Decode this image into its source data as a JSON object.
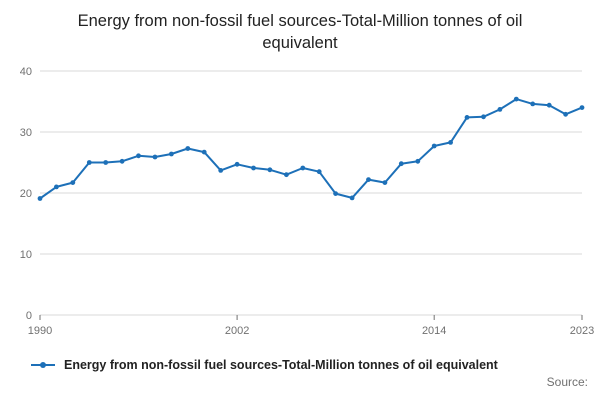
{
  "title": "Energy from non-fossil fuel sources-Total-Million tonnes of oil equivalent",
  "legend": {
    "label": "Energy from non-fossil fuel sources-Total-Million tonnes of oil equivalent"
  },
  "source": "Source:",
  "colors": {
    "line": "#1d70b8",
    "grid": "#d9d9d9",
    "axis_text": "#707070",
    "title_text": "#222222"
  },
  "chart_data": {
    "type": "line",
    "title": "Energy from non-fossil fuel sources-Total-Million tonnes of oil equivalent",
    "xlabel": "",
    "ylabel": "",
    "x": [
      1990,
      1991,
      1992,
      1993,
      1994,
      1995,
      1996,
      1997,
      1998,
      1999,
      2000,
      2001,
      2002,
      2003,
      2004,
      2005,
      2006,
      2007,
      2008,
      2009,
      2010,
      2011,
      2012,
      2013,
      2014,
      2015,
      2016,
      2017,
      2018,
      2019,
      2020,
      2021,
      2022,
      2023
    ],
    "series": [
      {
        "name": "Energy from non-fossil fuel sources-Total-Million tonnes of oil equivalent",
        "values": [
          19.1,
          21.0,
          21.7,
          25.0,
          25.0,
          25.2,
          26.1,
          25.9,
          26.4,
          27.3,
          26.7,
          23.7,
          24.7,
          24.1,
          23.8,
          23.0,
          24.1,
          23.5,
          19.9,
          19.2,
          22.2,
          21.7,
          24.8,
          25.2,
          27.7,
          28.3,
          32.4,
          32.5,
          33.7,
          35.4,
          34.6,
          34.4,
          32.9,
          34.0
        ]
      }
    ],
    "xlim": [
      1990,
      2023
    ],
    "ylim": [
      0,
      40
    ],
    "xticks": [
      1990,
      2002,
      2014,
      2023
    ],
    "yticks": [
      0,
      10,
      20,
      30,
      40
    ],
    "grid": true,
    "legend_position": "bottom"
  }
}
